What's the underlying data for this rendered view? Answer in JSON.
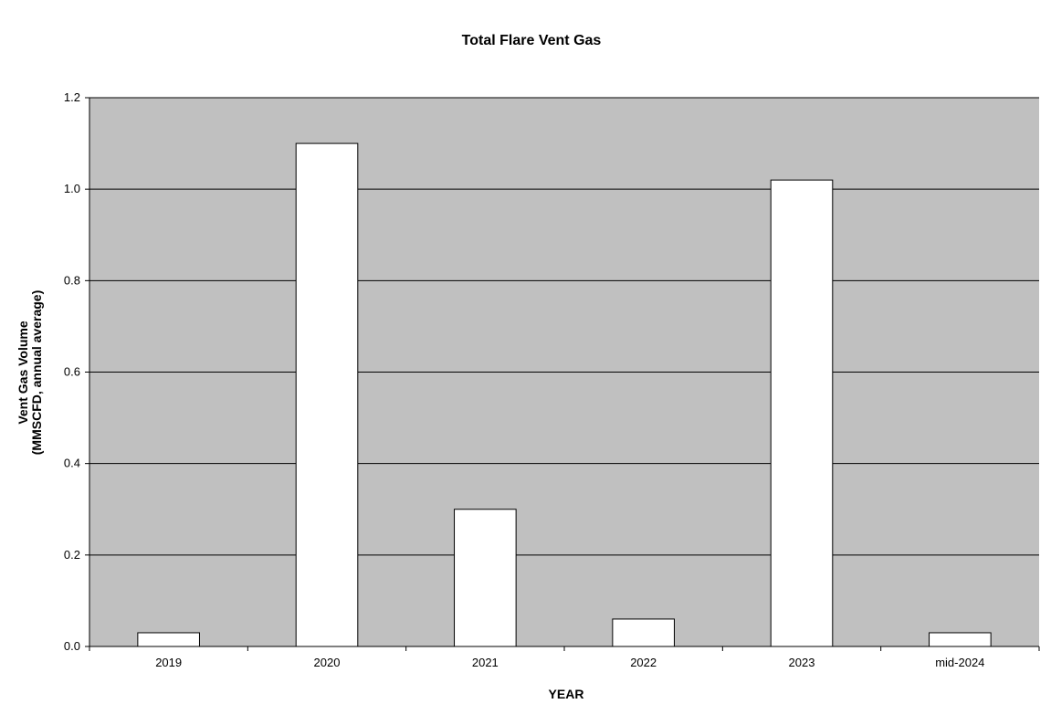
{
  "chart_data": {
    "type": "bar",
    "title": "Total Flare Vent Gas",
    "xlabel": "YEAR",
    "ylabel_lines": [
      "Vent Gas Volume",
      "(MMSCFD, annual average)"
    ],
    "categories": [
      "2019",
      "2020",
      "2021",
      "2022",
      "2023",
      "mid-2024"
    ],
    "values": [
      0.03,
      1.1,
      0.3,
      0.06,
      1.02,
      0.03
    ],
    "ylim": [
      0,
      1.2
    ],
    "yticks": [
      "0.0",
      "0.2",
      "0.4",
      "0.6",
      "0.8",
      "1.0",
      "1.2"
    ],
    "grid": "horizontal",
    "legend": "none",
    "colors": {
      "plot_background": "#c0c0c0",
      "bar_fill": "#ffffff",
      "bar_stroke": "#000000",
      "gridline": "#000000"
    }
  }
}
